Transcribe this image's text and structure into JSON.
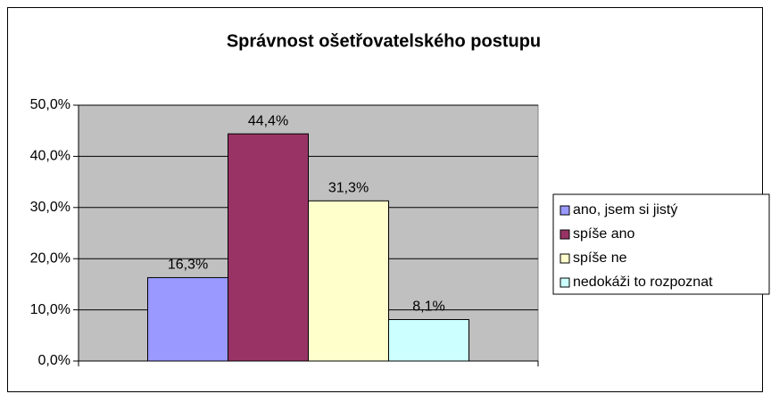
{
  "chart_data": {
    "type": "bar",
    "title": "Správnost ošetřovatelského postupu",
    "categories": [
      null
    ],
    "series": [
      {
        "name": "ano, jsem si jistý",
        "color": "#9999ff",
        "values": [
          16.3
        ],
        "value_labels": [
          "16,3%"
        ]
      },
      {
        "name": "spíše ano",
        "color": "#993366",
        "values": [
          44.4
        ],
        "value_labels": [
          "44,4%"
        ]
      },
      {
        "name": "spíše ne",
        "color": "#ffffcc",
        "values": [
          31.3
        ],
        "value_labels": [
          "31,3%"
        ]
      },
      {
        "name": "nedokáži to rozpoznat",
        "color": "#ccffff",
        "values": [
          8.1
        ],
        "value_labels": [
          "8,1%"
        ]
      }
    ],
    "ylim": [
      0,
      50
    ],
    "yticks": [
      {
        "value": 0,
        "label": "0,0%"
      },
      {
        "value": 10,
        "label": "10,0%"
      },
      {
        "value": 20,
        "label": "20,0%"
      },
      {
        "value": 30,
        "label": "30,0%"
      },
      {
        "value": 40,
        "label": "40,0%"
      },
      {
        "value": 50,
        "label": "50,0%"
      }
    ],
    "grid": true,
    "legend": "right"
  }
}
